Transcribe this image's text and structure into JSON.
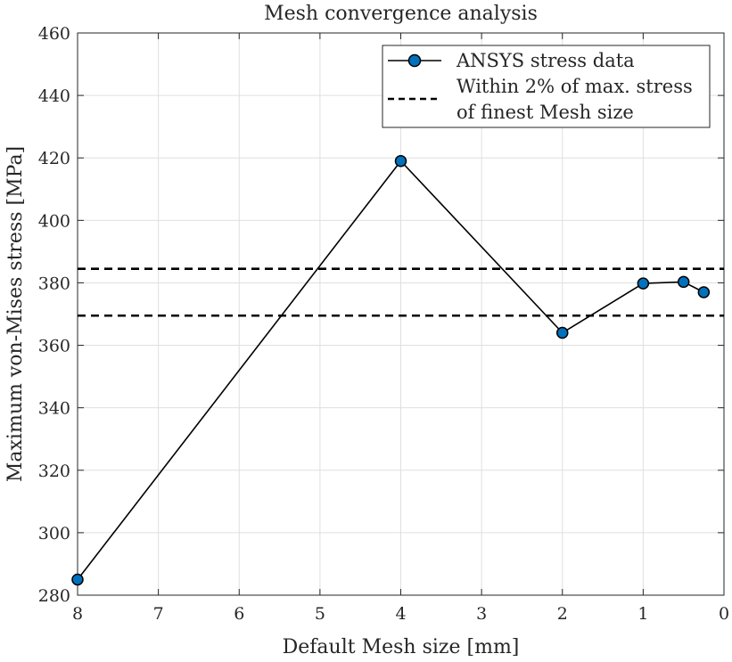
{
  "chart_data": {
    "type": "line",
    "title": "Mesh convergence analysis",
    "xlabel": "Default Mesh size [mm]",
    "ylabel": "Maximum von-Mises stress [MPa]",
    "xlim": [
      8,
      0
    ],
    "x_reversed": true,
    "ylim": [
      280,
      460
    ],
    "xticks": [
      8,
      7,
      6,
      5,
      4,
      3,
      2,
      1,
      0
    ],
    "yticks": [
      280,
      300,
      320,
      340,
      360,
      380,
      400,
      420,
      440,
      460
    ],
    "grid": true,
    "legend_position": "top-right",
    "series": [
      {
        "name": "ANSYS stress data",
        "style": "line-with-circle-markers",
        "color": "#000000",
        "marker_fill": "#0072BD",
        "x": [
          8,
          4,
          2,
          1,
          0.5,
          0.25
        ],
        "y": [
          285.0,
          419.0,
          364.0,
          379.8,
          380.3,
          377.0
        ]
      },
      {
        "name": "Within 2% of max. stress of finest Mesh size",
        "legend_lines": [
          "Within 2% of max. stress",
          "of finest Mesh size"
        ],
        "style": "dashed-horizontal",
        "color": "#000000",
        "y_levels": [
          384.5,
          369.5
        ]
      }
    ]
  }
}
